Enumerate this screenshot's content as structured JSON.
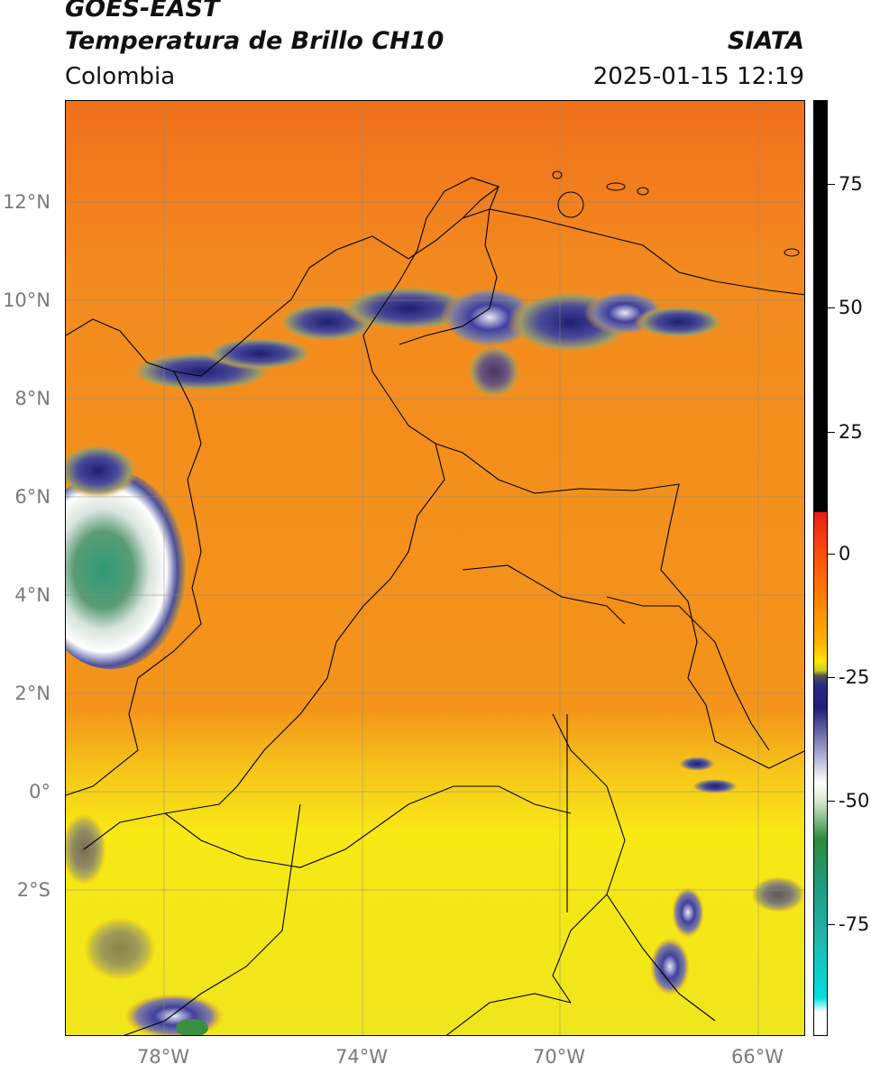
{
  "title": {
    "satellite": "GOES-EAST",
    "product": "Temperatura de Brillo CH10",
    "region": "Colombia",
    "org": "SIATA",
    "datetime": "2025-01-15 12:19"
  },
  "axes": {
    "lat_labels": [
      "12°N",
      "10°N",
      "8°N",
      "6°N",
      "4°N",
      "2°N",
      "0°",
      "2°S"
    ],
    "lon_labels": [
      "78°W",
      "74°W",
      "70°W",
      "66°W"
    ]
  },
  "colorbar": {
    "ticks": [
      "75",
      "50",
      "25",
      "0",
      "-25",
      "-50",
      "-75"
    ],
    "colors": [
      "#000000",
      "#e41e14",
      "#ff7d00",
      "#ffe600",
      "#1f1f7a",
      "#ffffff",
      "#2e8b3a",
      "#20b0a0",
      "#00e0e0"
    ]
  },
  "map_colors": {
    "ocean_north": "#f47a1a",
    "land": "#f2931c",
    "south": "#f8e811",
    "cloud_dark": "#2c2c7e",
    "cloud_white": "#eeeeee",
    "cloud_green": "#3a8f6a"
  }
}
